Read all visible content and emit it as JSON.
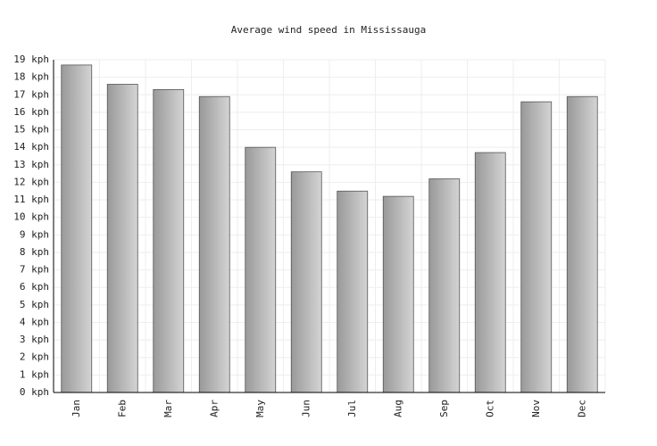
{
  "chart_data": {
    "type": "bar",
    "title": "Average wind speed in Mississauga",
    "categories": [
      "Jan",
      "Feb",
      "Mar",
      "Apr",
      "May",
      "Jun",
      "Jul",
      "Aug",
      "Sep",
      "Oct",
      "Nov",
      "Dec"
    ],
    "values": [
      18.7,
      17.6,
      17.3,
      16.9,
      14.0,
      12.6,
      11.5,
      11.2,
      12.2,
      13.7,
      16.6,
      16.9
    ],
    "color": "#999999",
    "ylim": [
      0,
      19
    ],
    "yticks": [
      {
        "value": 0,
        "label": "0 kph"
      },
      {
        "value": 1,
        "label": "1 kph"
      },
      {
        "value": 2,
        "label": "2 kph"
      },
      {
        "value": 3,
        "label": "3 kph"
      },
      {
        "value": 4,
        "label": "4 kph"
      },
      {
        "value": 5,
        "label": "5 kph"
      },
      {
        "value": 6,
        "label": "6 kph"
      },
      {
        "value": 7,
        "label": "7 kph"
      },
      {
        "value": 8,
        "label": "8 kph"
      },
      {
        "value": 9,
        "label": "9 kph"
      },
      {
        "value": 10,
        "label": "10 kph"
      },
      {
        "value": 11,
        "label": "11 kph"
      },
      {
        "value": 12,
        "label": "12 kph"
      },
      {
        "value": 13,
        "label": "13 kph"
      },
      {
        "value": 14,
        "label": "14 kph"
      },
      {
        "value": 15,
        "label": "15 kph"
      },
      {
        "value": 16,
        "label": "16 kph"
      },
      {
        "value": 17,
        "label": "17 kph"
      },
      {
        "value": 18,
        "label": "18 kph"
      },
      {
        "value": 19,
        "label": "19 kph"
      }
    ],
    "grid": true
  }
}
